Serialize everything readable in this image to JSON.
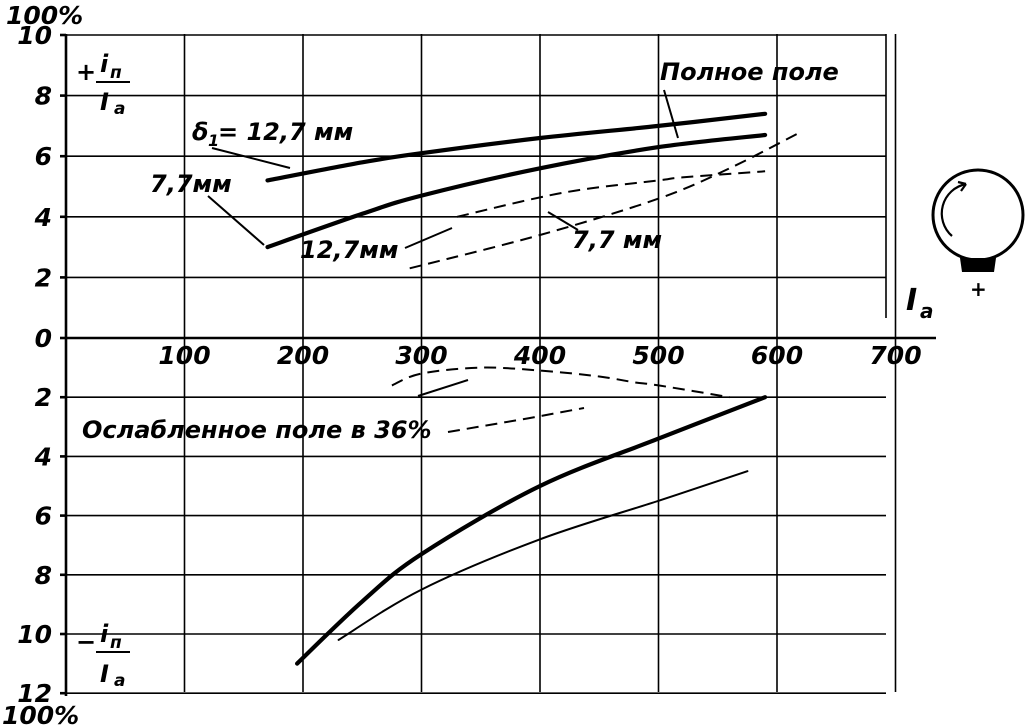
{
  "chart_data": [
    {
      "type": "line",
      "panel": "top",
      "axis_top_label": "100%",
      "ylabel_num": "i",
      "ylabel_sub": "п",
      "ylabel_den": "I",
      "ylabel_den_sub": "a",
      "ylabel_sign": "+",
      "xlabel": "I",
      "xlabel_sub": "a",
      "xlim": [
        0,
        700
      ],
      "ylim": [
        0,
        10
      ],
      "x_ticks": [
        "100",
        "200",
        "300",
        "400",
        "500",
        "600",
        "700"
      ],
      "y_ticks": [
        "0",
        "2",
        "4",
        "6",
        "8",
        "10"
      ],
      "grid": true,
      "annotations": [
        "Полное поле",
        "δ",
        "1",
        "= 12,7 мм",
        "7,7мм",
        "12,7мм",
        "7,7 мм"
      ],
      "series": [
        {
          "name": "δ1 = 12,7 мм",
          "style": "thick",
          "x": [
            170,
            250,
            300,
            400,
            500,
            590
          ],
          "y": [
            5.2,
            5.8,
            6.1,
            6.6,
            7.0,
            7.4
          ]
        },
        {
          "name": "7,7мм",
          "style": "thick",
          "x": [
            170,
            250,
            300,
            400,
            500,
            590
          ],
          "y": [
            3.0,
            4.1,
            4.7,
            5.6,
            6.3,
            6.7
          ]
        },
        {
          "name": "12,7мм",
          "style": "dashed",
          "x": [
            330,
            420,
            500,
            520,
            590
          ],
          "y": [
            4.0,
            4.8,
            5.2,
            5.3,
            5.5
          ]
        },
        {
          "name": "7,7 мм",
          "style": "dashed",
          "x": [
            290,
            400,
            500,
            560,
            620
          ],
          "y": [
            2.3,
            3.4,
            4.6,
            5.6,
            6.8
          ]
        }
      ]
    },
    {
      "type": "line",
      "panel": "bottom",
      "axis_bottom_label": "100%",
      "ylabel_num": "i",
      "ylabel_sub": "п",
      "ylabel_den": "I",
      "ylabel_den_sub": "a",
      "ylabel_sign": "−",
      "xlim": [
        0,
        700
      ],
      "ylim": [
        0,
        12
      ],
      "y_ticks": [
        "2",
        "4",
        "6",
        "8",
        "10",
        "12"
      ],
      "grid": true,
      "annotations": [
        "Ослабленное поле в 36%"
      ],
      "series": [
        {
          "name": "Ослабленное поле в 36%",
          "style": "thick",
          "x": [
            195,
            250,
            300,
            400,
            500,
            590
          ],
          "y": [
            11.0,
            8.9,
            7.3,
            5.0,
            3.4,
            2.0
          ]
        },
        {
          "style": "thin",
          "x": [
            230,
            300,
            400,
            500,
            575
          ],
          "y": [
            10.2,
            8.5,
            6.8,
            5.5,
            4.5
          ]
        },
        {
          "style": "dashed",
          "x": [
            275,
            300,
            350,
            400,
            450,
            480,
            500,
            560
          ],
          "y": [
            1.6,
            1.2,
            1.0,
            1.1,
            1.3,
            1.5,
            1.6,
            2.0
          ]
        }
      ]
    }
  ]
}
